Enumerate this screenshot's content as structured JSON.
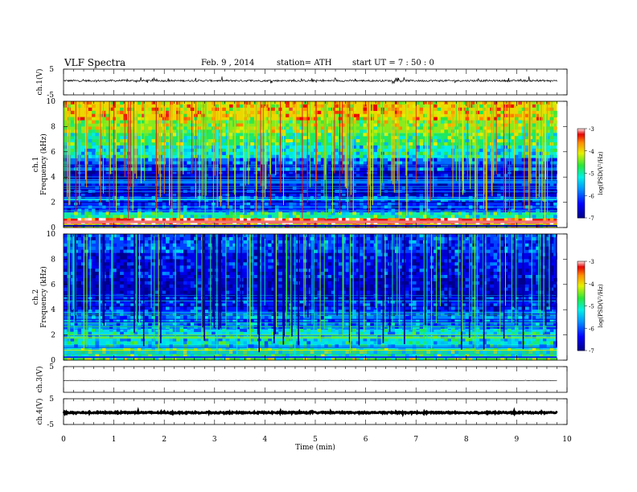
{
  "header": {
    "title": "VLF  Spectra",
    "date": "Feb. 9  , 2014",
    "station": "station= ATH",
    "start": "start  UT  =   7  : 50 : 0"
  },
  "chart_data": {
    "type": "heatmap",
    "xlabel": "Time  (min)",
    "xlim": [
      0,
      10
    ],
    "x_ticks": [
      "0",
      "1",
      "2",
      "3",
      "4",
      "5",
      "6",
      "7",
      "8",
      "9",
      "10"
    ],
    "data_end_min": 9.8,
    "panels": [
      {
        "kind": "waveform",
        "ylabel": "ch.1(V)",
        "ylim": [
          -5,
          5
        ],
        "y_ticks": [
          "5",
          "-5"
        ],
        "baseline": 0.5,
        "noise_amplitude": 0.35,
        "spike_amplitude": 1.2
      },
      {
        "kind": "spectrogram",
        "ylabel_channel": "ch.1",
        "ylabel": "Frequency  (kHz)",
        "ylim": [
          0,
          10
        ],
        "y_ticks": [
          "0",
          "2",
          "4",
          "6",
          "8",
          "10"
        ],
        "colorbar": {
          "label": "log(PSD(V²/Hz)",
          "range": [
            -7,
            -3
          ],
          "ticks": [
            "-3",
            "-4",
            "-5",
            "-6",
            "-7"
          ]
        },
        "bands": [
          {
            "from_khz": 0.0,
            "to_khz": 0.3,
            "logpsd": -4.2
          },
          {
            "from_khz": 0.3,
            "to_khz": 0.7,
            "logpsd": -3.3
          },
          {
            "from_khz": 0.7,
            "to_khz": 1.2,
            "logpsd": -5.0
          },
          {
            "from_khz": 1.2,
            "to_khz": 2.4,
            "logpsd": -6.2
          },
          {
            "from_khz": 2.4,
            "to_khz": 4.5,
            "logpsd": -6.6
          },
          {
            "from_khz": 4.5,
            "to_khz": 5.5,
            "logpsd": -5.9
          },
          {
            "from_khz": 5.5,
            "to_khz": 6.5,
            "logpsd": -5.2
          },
          {
            "from_khz": 6.5,
            "to_khz": 7.5,
            "logpsd": -4.8
          },
          {
            "from_khz": 7.5,
            "to_khz": 8.5,
            "logpsd": -4.4
          },
          {
            "from_khz": 8.5,
            "to_khz": 10.0,
            "logpsd": -4.0
          }
        ]
      },
      {
        "kind": "spectrogram",
        "ylabel_channel": "ch.2",
        "ylabel": "Frequency  (kHz)",
        "ylim": [
          0,
          10
        ],
        "y_ticks": [
          "0",
          "2",
          "4",
          "6",
          "8",
          "10"
        ],
        "colorbar": {
          "label": "log(PSD(V²/Hz)",
          "range": [
            -7,
            -3
          ],
          "ticks": [
            "-3",
            "-4",
            "-5",
            "-6",
            "-7"
          ]
        },
        "bands": [
          {
            "from_khz": 0.0,
            "to_khz": 0.3,
            "logpsd": -4.6
          },
          {
            "from_khz": 0.3,
            "to_khz": 0.9,
            "logpsd": -4.9
          },
          {
            "from_khz": 0.9,
            "to_khz": 2.4,
            "logpsd": -5.3
          },
          {
            "from_khz": 2.4,
            "to_khz": 3.6,
            "logpsd": -5.8
          },
          {
            "from_khz": 3.6,
            "to_khz": 5.0,
            "logpsd": -6.3
          },
          {
            "from_khz": 5.0,
            "to_khz": 6.5,
            "logpsd": -6.7
          },
          {
            "from_khz": 6.5,
            "to_khz": 8.5,
            "logpsd": -6.5
          },
          {
            "from_khz": 8.5,
            "to_khz": 10.0,
            "logpsd": -6.1
          }
        ]
      },
      {
        "kind": "waveform",
        "ylabel": "ch.3(V)",
        "ylim": [
          -5,
          5
        ],
        "y_ticks": [
          "5"
        ],
        "baseline": -0.4,
        "noise_amplitude": 0.05,
        "spike_amplitude": 0.1
      },
      {
        "kind": "waveform",
        "ylabel": "ch.4(V)",
        "ylim": [
          -5,
          5
        ],
        "y_ticks": [
          "5",
          "-5"
        ],
        "baseline": -0.4,
        "noise_amplitude": 0.25,
        "spike_amplitude": 0.3
      }
    ]
  }
}
